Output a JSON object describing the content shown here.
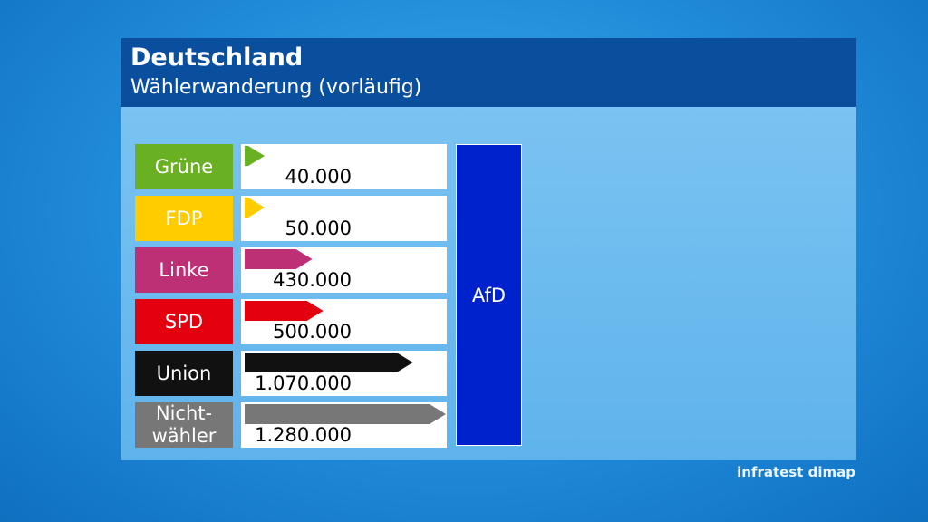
{
  "header": {
    "title": "Deutschland",
    "subtitle": "Wählerwanderung (vorläufig)"
  },
  "chart_data": {
    "type": "bar",
    "orientation": "horizontal",
    "target": "AfD",
    "categories": [
      "Grüne",
      "FDP",
      "Linke",
      "SPD",
      "Union",
      "Nicht-\nwähler"
    ],
    "values": [
      40000,
      50000,
      430000,
      500000,
      1070000,
      1280000
    ],
    "value_labels": [
      "40.000",
      "50.000",
      "430.000",
      "500.000",
      "1.070.000",
      "1.280.000"
    ],
    "colors": [
      "#6ab023",
      "#ffcc00",
      "#be3075",
      "#e3000f",
      "#111111",
      "#777777"
    ]
  },
  "footer": "infratest dimap"
}
